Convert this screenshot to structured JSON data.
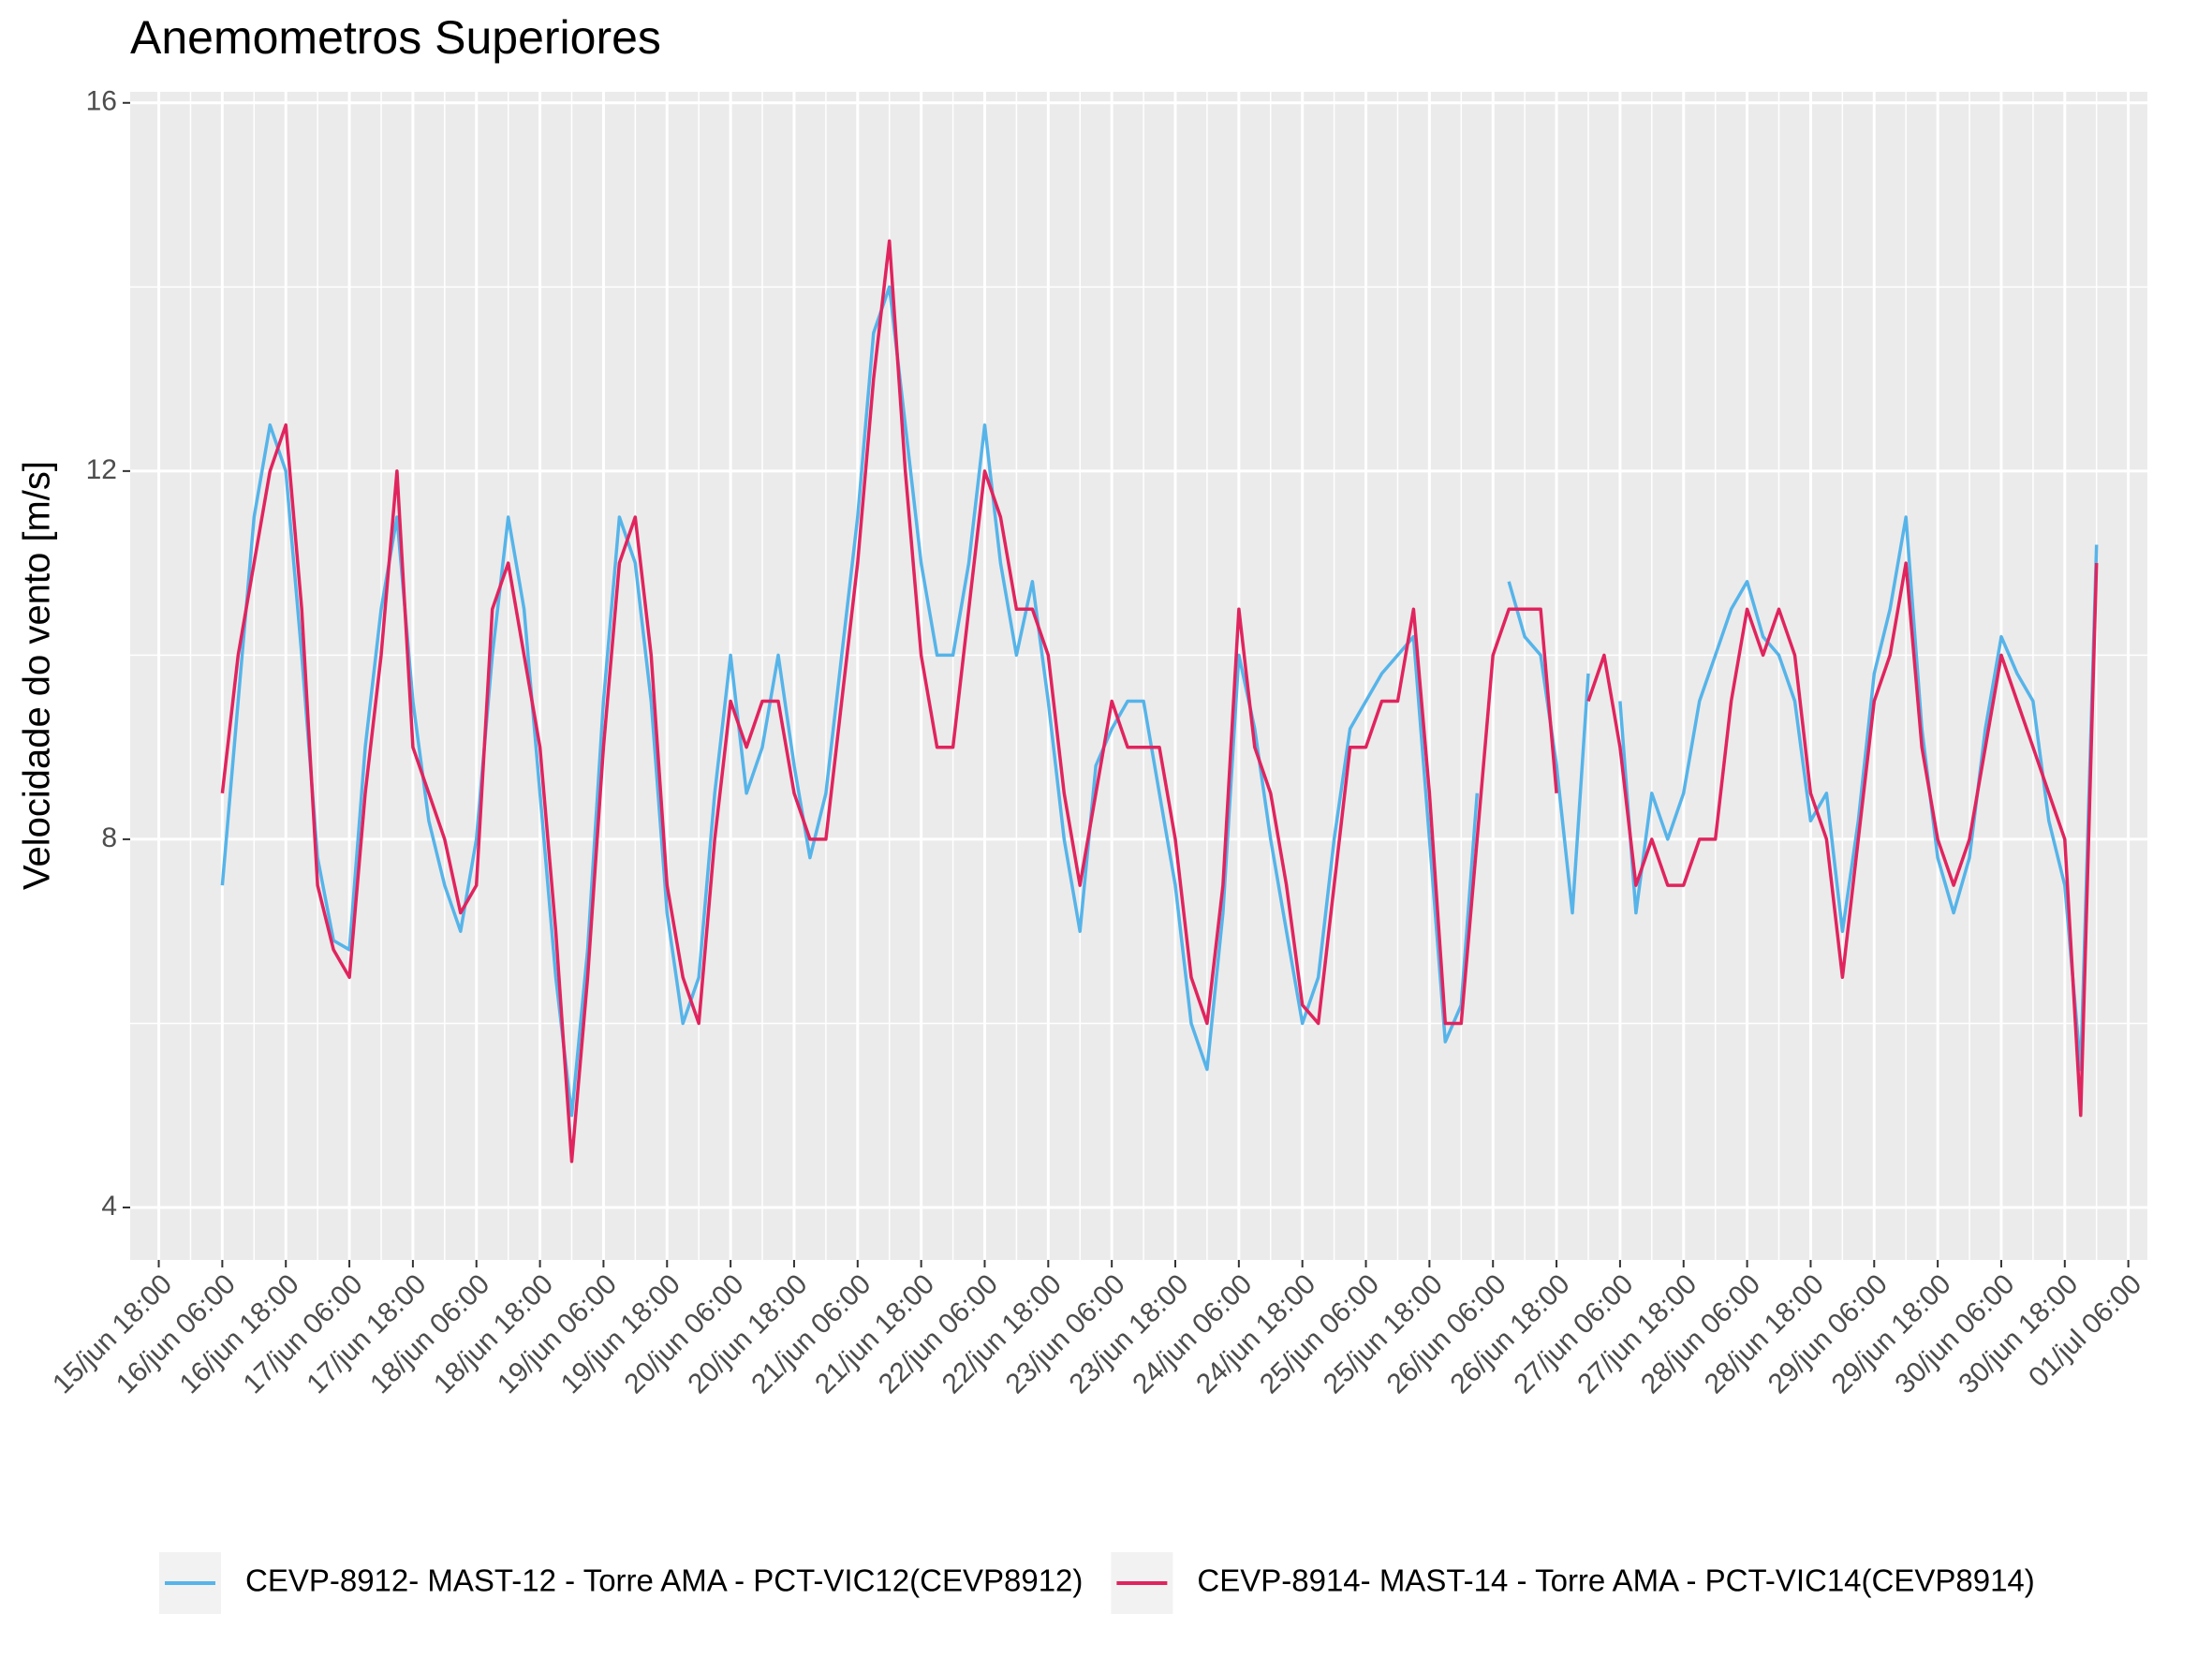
{
  "chart_data": {
    "type": "line",
    "title": "Anemometros Superiores",
    "ylabel": "Velocidade do vento [m/s]",
    "ylim": [
      3.43,
      16.12
    ],
    "yticks": [
      4,
      8,
      12,
      16
    ],
    "xlim": [
      "15/jun 12:36",
      "01/jul 09:36"
    ],
    "xticks": [
      "15/jun 18:00",
      "16/jun 06:00",
      "16/jun 18:00",
      "17/jun 06:00",
      "17/jun 18:00",
      "18/jun 06:00",
      "18/jun 18:00",
      "19/jun 06:00",
      "19/jun 18:00",
      "20/jun 06:00",
      "20/jun 18:00",
      "21/jun 06:00",
      "21/jun 18:00",
      "22/jun 06:00",
      "22/jun 18:00",
      "23/jun 06:00",
      "23/jun 18:00",
      "24/jun 06:00",
      "24/jun 18:00",
      "25/jun 06:00",
      "25/jun 18:00",
      "26/jun 06:00",
      "26/jun 18:00",
      "27/jun 06:00",
      "27/jun 18:00",
      "28/jun 06:00",
      "28/jun 18:00",
      "29/jun 06:00",
      "29/jun 18:00",
      "30/jun 06:00",
      "30/jun 18:00",
      "01/jul 06:00"
    ],
    "grid": true,
    "legend": "bottom",
    "x": [
      "16/jun 06:00",
      "16/jun 09:00",
      "16/jun 12:00",
      "16/jun 15:00",
      "16/jun 18:00",
      "16/jun 21:00",
      "17/jun 00:00",
      "17/jun 03:00",
      "17/jun 06:00",
      "17/jun 09:00",
      "17/jun 12:00",
      "17/jun 15:00",
      "17/jun 18:00",
      "17/jun 21:00",
      "18/jun 00:00",
      "18/jun 03:00",
      "18/jun 06:00",
      "18/jun 09:00",
      "18/jun 12:00",
      "18/jun 15:00",
      "18/jun 18:00",
      "18/jun 21:00",
      "19/jun 00:00",
      "19/jun 03:00",
      "19/jun 06:00",
      "19/jun 09:00",
      "19/jun 12:00",
      "19/jun 15:00",
      "19/jun 18:00",
      "19/jun 21:00",
      "20/jun 00:00",
      "20/jun 03:00",
      "20/jun 06:00",
      "20/jun 09:00",
      "20/jun 12:00",
      "20/jun 15:00",
      "20/jun 18:00",
      "20/jun 21:00",
      "21/jun 00:00",
      "21/jun 03:00",
      "21/jun 06:00",
      "21/jun 09:00",
      "21/jun 12:00",
      "21/jun 15:00",
      "21/jun 18:00",
      "21/jun 21:00",
      "22/jun 00:00",
      "22/jun 03:00",
      "22/jun 06:00",
      "22/jun 09:00",
      "22/jun 12:00",
      "22/jun 15:00",
      "22/jun 18:00",
      "22/jun 21:00",
      "23/jun 00:00",
      "23/jun 03:00",
      "23/jun 06:00",
      "23/jun 09:00",
      "23/jun 12:00",
      "23/jun 15:00",
      "23/jun 18:00",
      "23/jun 21:00",
      "24/jun 00:00",
      "24/jun 03:00",
      "24/jun 06:00",
      "24/jun 09:00",
      "24/jun 12:00",
      "24/jun 15:00",
      "24/jun 18:00",
      "24/jun 21:00",
      "25/jun 00:00",
      "25/jun 03:00",
      "25/jun 06:00",
      "25/jun 09:00",
      "25/jun 12:00",
      "25/jun 15:00",
      "25/jun 18:00",
      "25/jun 21:00",
      "26/jun 00:00",
      "26/jun 03:00",
      "26/jun 06:00",
      "26/jun 09:00",
      "26/jun 12:00",
      "26/jun 15:00",
      "26/jun 18:00",
      "26/jun 21:00",
      "27/jun 00:00",
      "27/jun 03:00",
      "27/jun 06:00",
      "27/jun 09:00",
      "27/jun 12:00",
      "27/jun 15:00",
      "27/jun 18:00",
      "27/jun 21:00",
      "28/jun 00:00",
      "28/jun 03:00",
      "28/jun 06:00",
      "28/jun 09:00",
      "28/jun 12:00",
      "28/jun 15:00",
      "28/jun 18:00",
      "28/jun 21:00",
      "29/jun 00:00",
      "29/jun 03:00",
      "29/jun 06:00",
      "29/jun 09:00",
      "29/jun 12:00",
      "29/jun 15:00",
      "29/jun 18:00",
      "29/jun 21:00",
      "30/jun 00:00",
      "30/jun 03:00",
      "30/jun 06:00",
      "30/jun 09:00",
      "30/jun 12:00",
      "30/jun 15:00",
      "30/jun 18:00",
      "30/jun 21:00",
      "01/jul 00:00"
    ],
    "series": [
      {
        "name": "CEVP-8912- MAST-12 - Torre AMA - PCT-VIC12(CEVP8912)",
        "color": "#56b4e9",
        "values": [
          7.5,
          9.5,
          11.5,
          12.5,
          12,
          10,
          7.8,
          6.9,
          6.8,
          9,
          10.5,
          11.5,
          9.5,
          8.2,
          7.5,
          7,
          8,
          10,
          11.5,
          10.5,
          8.5,
          6.5,
          5,
          6.8,
          9.5,
          11.5,
          11,
          9.5,
          7.2,
          6,
          6.5,
          8.5,
          10,
          8.5,
          9,
          10,
          8.8,
          7.8,
          8.5,
          10,
          11.5,
          13.5,
          14,
          12.5,
          11,
          10,
          10,
          11,
          12.5,
          11,
          10,
          10.8,
          9.5,
          8,
          7,
          8.8,
          9.2,
          9.5,
          9.5,
          8.5,
          7.5,
          6,
          5.5,
          7.2,
          10,
          9.2,
          8,
          7,
          6,
          6.5,
          8,
          9.2,
          9.5,
          9.8,
          10,
          10.2,
          8,
          5.8,
          6.2,
          8.5,
          null,
          10.8,
          10.2,
          10,
          8.8,
          7.2,
          9.8,
          null,
          9.5,
          7.2,
          8.5,
          8,
          8.5,
          9.5,
          10,
          10.5,
          10.8,
          10.2,
          10,
          9.5,
          8.2,
          8.5,
          7,
          8.2,
          9.8,
          10.5,
          11.5,
          9.2,
          7.8,
          7.2,
          7.8,
          9.2,
          10.2,
          9.8,
          9.5,
          8.2,
          7.5,
          5.5,
          11.2
        ]
      },
      {
        "name": "CEVP-8914- MAST-14 - Torre AMA - PCT-VIC14(CEVP8914)",
        "color": "#e0245e",
        "values": [
          8.5,
          10,
          11,
          12,
          12.5,
          10.5,
          7.5,
          6.8,
          6.5,
          8.5,
          10,
          12,
          9,
          8.5,
          8,
          7.2,
          7.5,
          10.5,
          11,
          10,
          9,
          7,
          4.5,
          6.5,
          9,
          11,
          11.5,
          10,
          7.5,
          6.5,
          6,
          8,
          9.5,
          9,
          9.5,
          9.5,
          8.5,
          8,
          8,
          9.5,
          11,
          13,
          14.5,
          12,
          10,
          9,
          9,
          10.5,
          12,
          11.5,
          10.5,
          10.5,
          10,
          8.5,
          7.5,
          8.5,
          9.5,
          9,
          9,
          9,
          8,
          6.5,
          6,
          7.5,
          10.5,
          9,
          8.5,
          7.5,
          6.2,
          6,
          7.5,
          9,
          9,
          9.5,
          9.5,
          10.5,
          8.5,
          6,
          6,
          8,
          10,
          10.5,
          10.5,
          10.5,
          8.5,
          null,
          9.5,
          10,
          9,
          7.5,
          8,
          7.5,
          7.5,
          8,
          8,
          9.5,
          10.5,
          10,
          10.5,
          10,
          8.5,
          8,
          6.5,
          8,
          9.5,
          10,
          11,
          9,
          8,
          7.5,
          8,
          9,
          10,
          9.5,
          9,
          8.5,
          8,
          5,
          11
        ]
      }
    ]
  }
}
